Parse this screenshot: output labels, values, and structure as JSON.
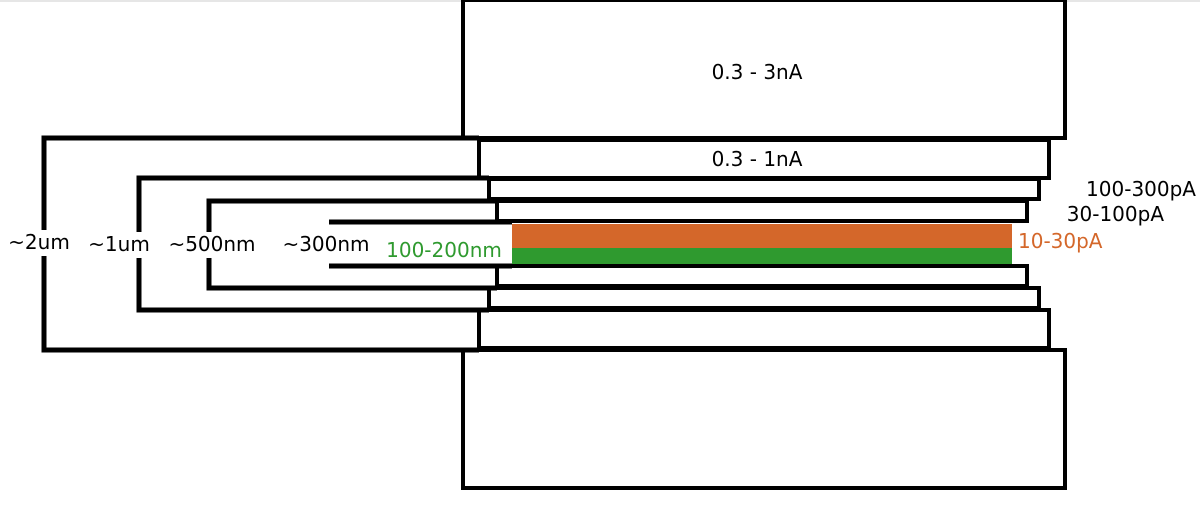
{
  "colors": {
    "orange": "#d4672a",
    "green": "#2f9a2f",
    "outline": "#000000"
  },
  "layers": [
    {
      "current": "0.3 - 3nA"
    },
    {
      "current": "0.3 - 1nA"
    },
    {
      "current": "100-300pA"
    },
    {
      "current": "30-100pA"
    },
    {
      "current": "10-30pA"
    }
  ],
  "innermost_width": "100-200nm",
  "brackets": [
    {
      "width": "~2um"
    },
    {
      "width": "~1um"
    },
    {
      "width": "~500nm"
    },
    {
      "width": "~300nm"
    }
  ]
}
